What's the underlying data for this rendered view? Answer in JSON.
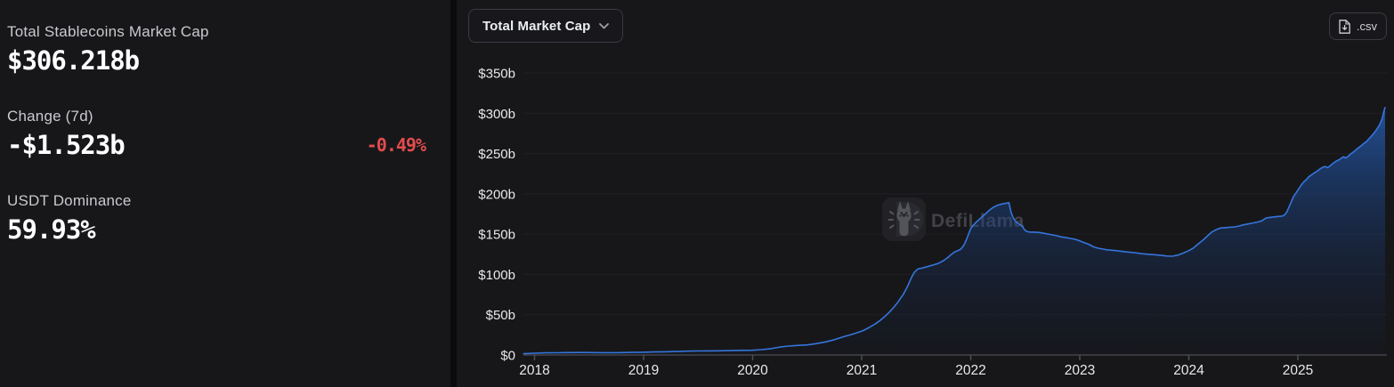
{
  "app": {
    "watermark": "DefiLlama"
  },
  "colors": {
    "page_bg": "#0b0b0d",
    "panel_bg": "#17171a",
    "accent_blue": "#3575db",
    "negative_red": "#e14c4c",
    "grid": "#202025",
    "axis": "#4d4d54",
    "axis_text": "#e9e9ec"
  },
  "sidebar": {
    "stats": [
      {
        "label": "Total Stablecoins Market Cap",
        "value": "$306.218b"
      },
      {
        "label": "Change (7d)",
        "value": "-$1.523b",
        "change_pct": "-0.49%"
      },
      {
        "label": "USDT Dominance",
        "value": "59.93%"
      }
    ]
  },
  "header": {
    "metric_dropdown_selected": "Total Market Cap",
    "csv_button_label": ".csv"
  },
  "chart_data": {
    "type": "area",
    "title": "Total Market Cap",
    "xlabel": "",
    "ylabel": "",
    "legend": false,
    "grid": "horizontal",
    "xlim": [
      2017.9,
      2025.8
    ],
    "ylim": [
      0,
      350
    ],
    "x_ticks": [
      2018,
      2019,
      2020,
      2021,
      2022,
      2023,
      2024,
      2025
    ],
    "y_ticks": [
      {
        "value": 0,
        "label": "$0"
      },
      {
        "value": 50,
        "label": "$50b"
      },
      {
        "value": 100,
        "label": "$100b"
      },
      {
        "value": 150,
        "label": "$150b"
      },
      {
        "value": 200,
        "label": "$200b"
      },
      {
        "value": 250,
        "label": "$250b"
      },
      {
        "value": 300,
        "label": "$300b"
      },
      {
        "value": 350,
        "label": "$350b"
      }
    ],
    "series": [
      {
        "name": "Total Stablecoins Market Cap",
        "unit": "$b",
        "points": [
          [
            2017.9,
            1.6
          ],
          [
            2018,
            2.2
          ],
          [
            2018.1,
            2.6
          ],
          [
            2018.2,
            2.8
          ],
          [
            2018.3,
            3
          ],
          [
            2018.45,
            3.1
          ],
          [
            2018.6,
            2.9
          ],
          [
            2018.75,
            2.9
          ],
          [
            2018.9,
            3.2
          ],
          [
            2019,
            3.4
          ],
          [
            2019.1,
            3.7
          ],
          [
            2019.2,
            4
          ],
          [
            2019.3,
            4.3
          ],
          [
            2019.4,
            4.7
          ],
          [
            2019.5,
            5
          ],
          [
            2019.6,
            5.1
          ],
          [
            2019.7,
            5.2
          ],
          [
            2019.8,
            5.4
          ],
          [
            2019.9,
            5.7
          ],
          [
            2020,
            5.9
          ],
          [
            2020.08,
            6.6
          ],
          [
            2020.17,
            7.8
          ],
          [
            2020.25,
            9.8
          ],
          [
            2020.33,
            11
          ],
          [
            2020.42,
            11.9
          ],
          [
            2020.5,
            12.5
          ],
          [
            2020.58,
            14
          ],
          [
            2020.67,
            16.2
          ],
          [
            2020.75,
            19
          ],
          [
            2020.83,
            22.5
          ],
          [
            2020.92,
            26
          ],
          [
            2021,
            29.5
          ],
          [
            2021.04,
            32
          ],
          [
            2021.08,
            35
          ],
          [
            2021.13,
            39
          ],
          [
            2021.17,
            43
          ],
          [
            2021.21,
            47.5
          ],
          [
            2021.25,
            52.5
          ],
          [
            2021.29,
            58.5
          ],
          [
            2021.33,
            65
          ],
          [
            2021.38,
            75
          ],
          [
            2021.42,
            85
          ],
          [
            2021.44,
            91
          ],
          [
            2021.46,
            97
          ],
          [
            2021.48,
            102
          ],
          [
            2021.5,
            105
          ],
          [
            2021.52,
            107
          ],
          [
            2021.56,
            108
          ],
          [
            2021.6,
            109.5
          ],
          [
            2021.65,
            111.5
          ],
          [
            2021.7,
            113.5
          ],
          [
            2021.75,
            117
          ],
          [
            2021.79,
            121
          ],
          [
            2021.82,
            124.5
          ],
          [
            2021.85,
            127.5
          ],
          [
            2021.88,
            129.5
          ],
          [
            2021.9,
            130.5
          ],
          [
            2021.92,
            133
          ],
          [
            2021.94,
            137
          ],
          [
            2021.96,
            143
          ],
          [
            2021.98,
            150
          ],
          [
            2022,
            157
          ],
          [
            2022.04,
            163.5
          ],
          [
            2022.08,
            168.5
          ],
          [
            2022.13,
            174.5
          ],
          [
            2022.17,
            179.5
          ],
          [
            2022.21,
            183.5
          ],
          [
            2022.25,
            186
          ],
          [
            2022.29,
            187.5
          ],
          [
            2022.33,
            188.5
          ],
          [
            2022.35,
            189
          ],
          [
            2022.37,
            177
          ],
          [
            2022.39,
            170
          ],
          [
            2022.41,
            166
          ],
          [
            2022.43,
            163.5
          ],
          [
            2022.45,
            162
          ],
          [
            2022.47,
            160
          ],
          [
            2022.49,
            156
          ],
          [
            2022.51,
            153.5
          ],
          [
            2022.54,
            152.5
          ],
          [
            2022.58,
            152.5
          ],
          [
            2022.63,
            152
          ],
          [
            2022.67,
            151
          ],
          [
            2022.71,
            150
          ],
          [
            2022.75,
            149
          ],
          [
            2022.79,
            148
          ],
          [
            2022.83,
            146.5
          ],
          [
            2022.88,
            145.5
          ],
          [
            2022.92,
            144.5
          ],
          [
            2022.96,
            143.5
          ],
          [
            2023,
            141.5
          ],
          [
            2023.04,
            139.5
          ],
          [
            2023.08,
            137.5
          ],
          [
            2023.13,
            134
          ],
          [
            2023.17,
            132.5
          ],
          [
            2023.21,
            131.5
          ],
          [
            2023.25,
            130.5
          ],
          [
            2023.33,
            129.5
          ],
          [
            2023.42,
            128
          ],
          [
            2023.5,
            127
          ],
          [
            2023.58,
            125.5
          ],
          [
            2023.67,
            124.5
          ],
          [
            2023.75,
            123.5
          ],
          [
            2023.8,
            122.8
          ],
          [
            2023.85,
            122.6
          ],
          [
            2023.9,
            124
          ],
          [
            2023.95,
            126.5
          ],
          [
            2024,
            129.5
          ],
          [
            2024.04,
            132.5
          ],
          [
            2024.08,
            137
          ],
          [
            2024.13,
            142.5
          ],
          [
            2024.17,
            147.5
          ],
          [
            2024.21,
            152.5
          ],
          [
            2024.25,
            155.5
          ],
          [
            2024.29,
            157.5
          ],
          [
            2024.33,
            158
          ],
          [
            2024.38,
            158.5
          ],
          [
            2024.42,
            159
          ],
          [
            2024.46,
            160
          ],
          [
            2024.5,
            161.5
          ],
          [
            2024.54,
            162.5
          ],
          [
            2024.58,
            163.5
          ],
          [
            2024.63,
            165
          ],
          [
            2024.67,
            166.5
          ],
          [
            2024.69,
            168.5
          ],
          [
            2024.71,
            170
          ],
          [
            2024.75,
            170.8
          ],
          [
            2024.79,
            171.5
          ],
          [
            2024.83,
            172
          ],
          [
            2024.86,
            172.5
          ],
          [
            2024.88,
            174
          ],
          [
            2024.9,
            178
          ],
          [
            2024.92,
            184
          ],
          [
            2024.94,
            190.5
          ],
          [
            2024.96,
            196.5
          ],
          [
            2024.98,
            200.5
          ],
          [
            2025,
            204.5
          ],
          [
            2025.02,
            208.5
          ],
          [
            2025.04,
            212.5
          ],
          [
            2025.06,
            215.5
          ],
          [
            2025.08,
            218
          ],
          [
            2025.1,
            221
          ],
          [
            2025.13,
            224
          ],
          [
            2025.15,
            226
          ],
          [
            2025.17,
            227.5
          ],
          [
            2025.19,
            229.5
          ],
          [
            2025.21,
            231.5
          ],
          [
            2025.23,
            233
          ],
          [
            2025.25,
            234
          ],
          [
            2025.27,
            232.5
          ],
          [
            2025.29,
            234
          ],
          [
            2025.31,
            236.5
          ],
          [
            2025.33,
            238.5
          ],
          [
            2025.35,
            240.5
          ],
          [
            2025.38,
            242.5
          ],
          [
            2025.4,
            244.5
          ],
          [
            2025.42,
            246
          ],
          [
            2025.44,
            244.5
          ],
          [
            2025.46,
            246.5
          ],
          [
            2025.48,
            249
          ],
          [
            2025.5,
            251
          ],
          [
            2025.52,
            253
          ],
          [
            2025.54,
            255.5
          ],
          [
            2025.56,
            257.5
          ],
          [
            2025.58,
            259.5
          ],
          [
            2025.6,
            262
          ],
          [
            2025.63,
            265
          ],
          [
            2025.65,
            268
          ],
          [
            2025.67,
            271
          ],
          [
            2025.69,
            274
          ],
          [
            2025.71,
            277.5
          ],
          [
            2025.73,
            281.5
          ],
          [
            2025.75,
            286
          ],
          [
            2025.77,
            292
          ],
          [
            2025.78,
            297
          ],
          [
            2025.79,
            303
          ],
          [
            2025.8,
            307
          ]
        ]
      }
    ]
  }
}
